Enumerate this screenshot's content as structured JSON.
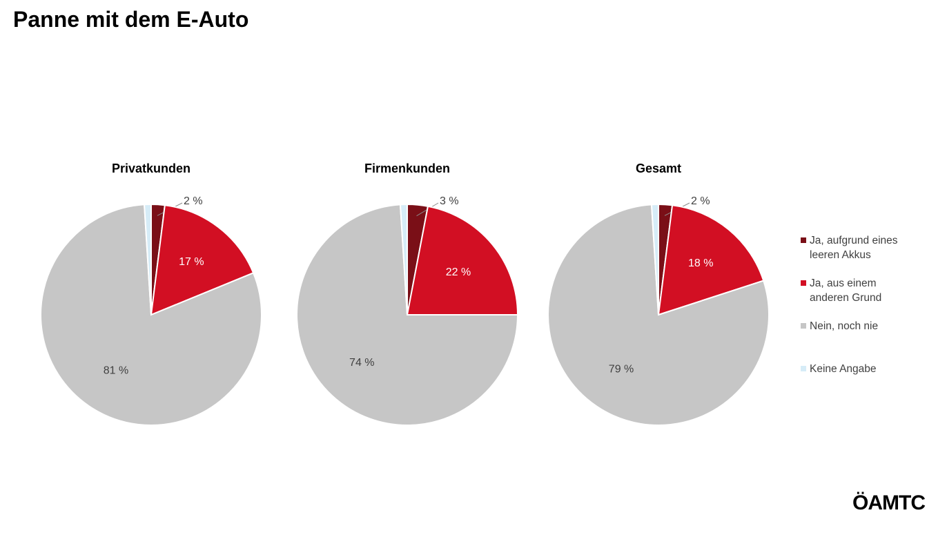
{
  "title": "Panne mit dem E-Auto",
  "logo": "ÖAMTC",
  "chart_data": [
    {
      "type": "pie",
      "title": "Privatkunden",
      "categories": [
        "Ja, aufgrund eines leeren Akkus",
        "Ja, aus einem anderen Grund",
        "Nein, noch nie",
        "Keine Angabe"
      ],
      "colors": [
        "#7a0f17",
        "#d20f23",
        "#c6c6c6",
        "#d6ecf7"
      ],
      "values": [
        2,
        17,
        81,
        1
      ],
      "value_labels": [
        "2 %",
        "17 %",
        "81 %",
        null
      ]
    },
    {
      "type": "pie",
      "title": "Firmenkunden",
      "categories": [
        "Ja, aufgrund eines leeren Akkus",
        "Ja, aus einem anderen Grund",
        "Nein, noch nie",
        "Keine Angabe"
      ],
      "colors": [
        "#7a0f17",
        "#d20f23",
        "#c6c6c6",
        "#d6ecf7"
      ],
      "values": [
        3,
        22,
        74,
        1
      ],
      "value_labels": [
        "3 %",
        "22 %",
        "74 %",
        null
      ]
    },
    {
      "type": "pie",
      "title": "Gesamt",
      "categories": [
        "Ja, aufgrund eines leeren Akkus",
        "Ja, aus einem anderen Grund",
        "Nein, noch nie",
        "Keine Angabe"
      ],
      "colors": [
        "#7a0f17",
        "#d20f23",
        "#c6c6c6",
        "#d6ecf7"
      ],
      "values": [
        2,
        18,
        79,
        1
      ],
      "value_labels": [
        "2 %",
        "18 %",
        "79 %",
        null
      ]
    }
  ]
}
